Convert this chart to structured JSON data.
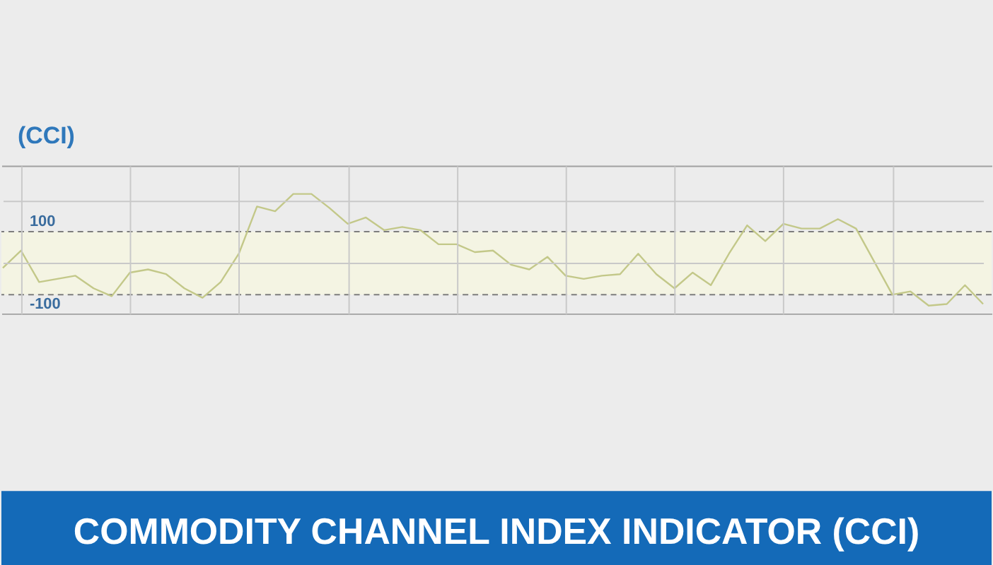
{
  "chart_data": {
    "type": "line",
    "title": "(CCI)",
    "annotations": [
      "COMMODITY CHANNEL INDEX INDICATOR (CCI)"
    ],
    "categories": [
      null,
      null,
      null,
      null,
      null,
      null,
      null,
      null,
      null,
      null,
      null,
      null,
      null,
      null,
      null,
      null,
      null,
      null,
      null,
      null,
      null,
      null,
      null,
      null,
      null,
      null,
      null,
      null,
      null,
      null,
      null,
      null,
      null,
      null,
      null,
      null,
      null,
      null,
      null,
      null,
      null,
      null,
      null,
      null,
      null,
      null,
      null,
      null,
      null,
      null,
      null,
      null,
      null,
      null,
      null
    ],
    "series": [
      {
        "color": "#c3c889",
        "values": [
          -15,
          40,
          -60,
          -50,
          -40,
          -80,
          -105,
          -30,
          -20,
          -35,
          -80,
          -110,
          -60,
          30,
          180,
          165,
          220,
          220,
          175,
          125,
          145,
          105,
          115,
          105,
          60,
          60,
          35,
          40,
          -5,
          -20,
          20,
          -40,
          -50,
          -40,
          -35,
          30,
          -35,
          -80,
          -30,
          -70,
          30,
          120,
          70,
          125,
          110,
          110,
          140,
          110,
          5,
          -100,
          -90,
          -135,
          -130,
          -70,
          -130
        ]
      }
    ],
    "ylim": [
      -160,
      310
    ],
    "yticks": [
      {
        "value": 0,
        "label": null
      },
      {
        "value": 200,
        "label": null
      }
    ],
    "tick_labels": false,
    "grid": true,
    "ref_lines": [
      {
        "axis": "y",
        "value": 100,
        "label": "100",
        "color": "#7d7d7d",
        "line_style": "dashed"
      },
      {
        "axis": "y",
        "value": -100,
        "label": "-100",
        "color": "#7d7d7d",
        "line_style": "dashed"
      }
    ],
    "bands": [
      {
        "axis": "y",
        "from": -100,
        "to": 100,
        "color": "#f4f4e3"
      }
    ]
  }
}
